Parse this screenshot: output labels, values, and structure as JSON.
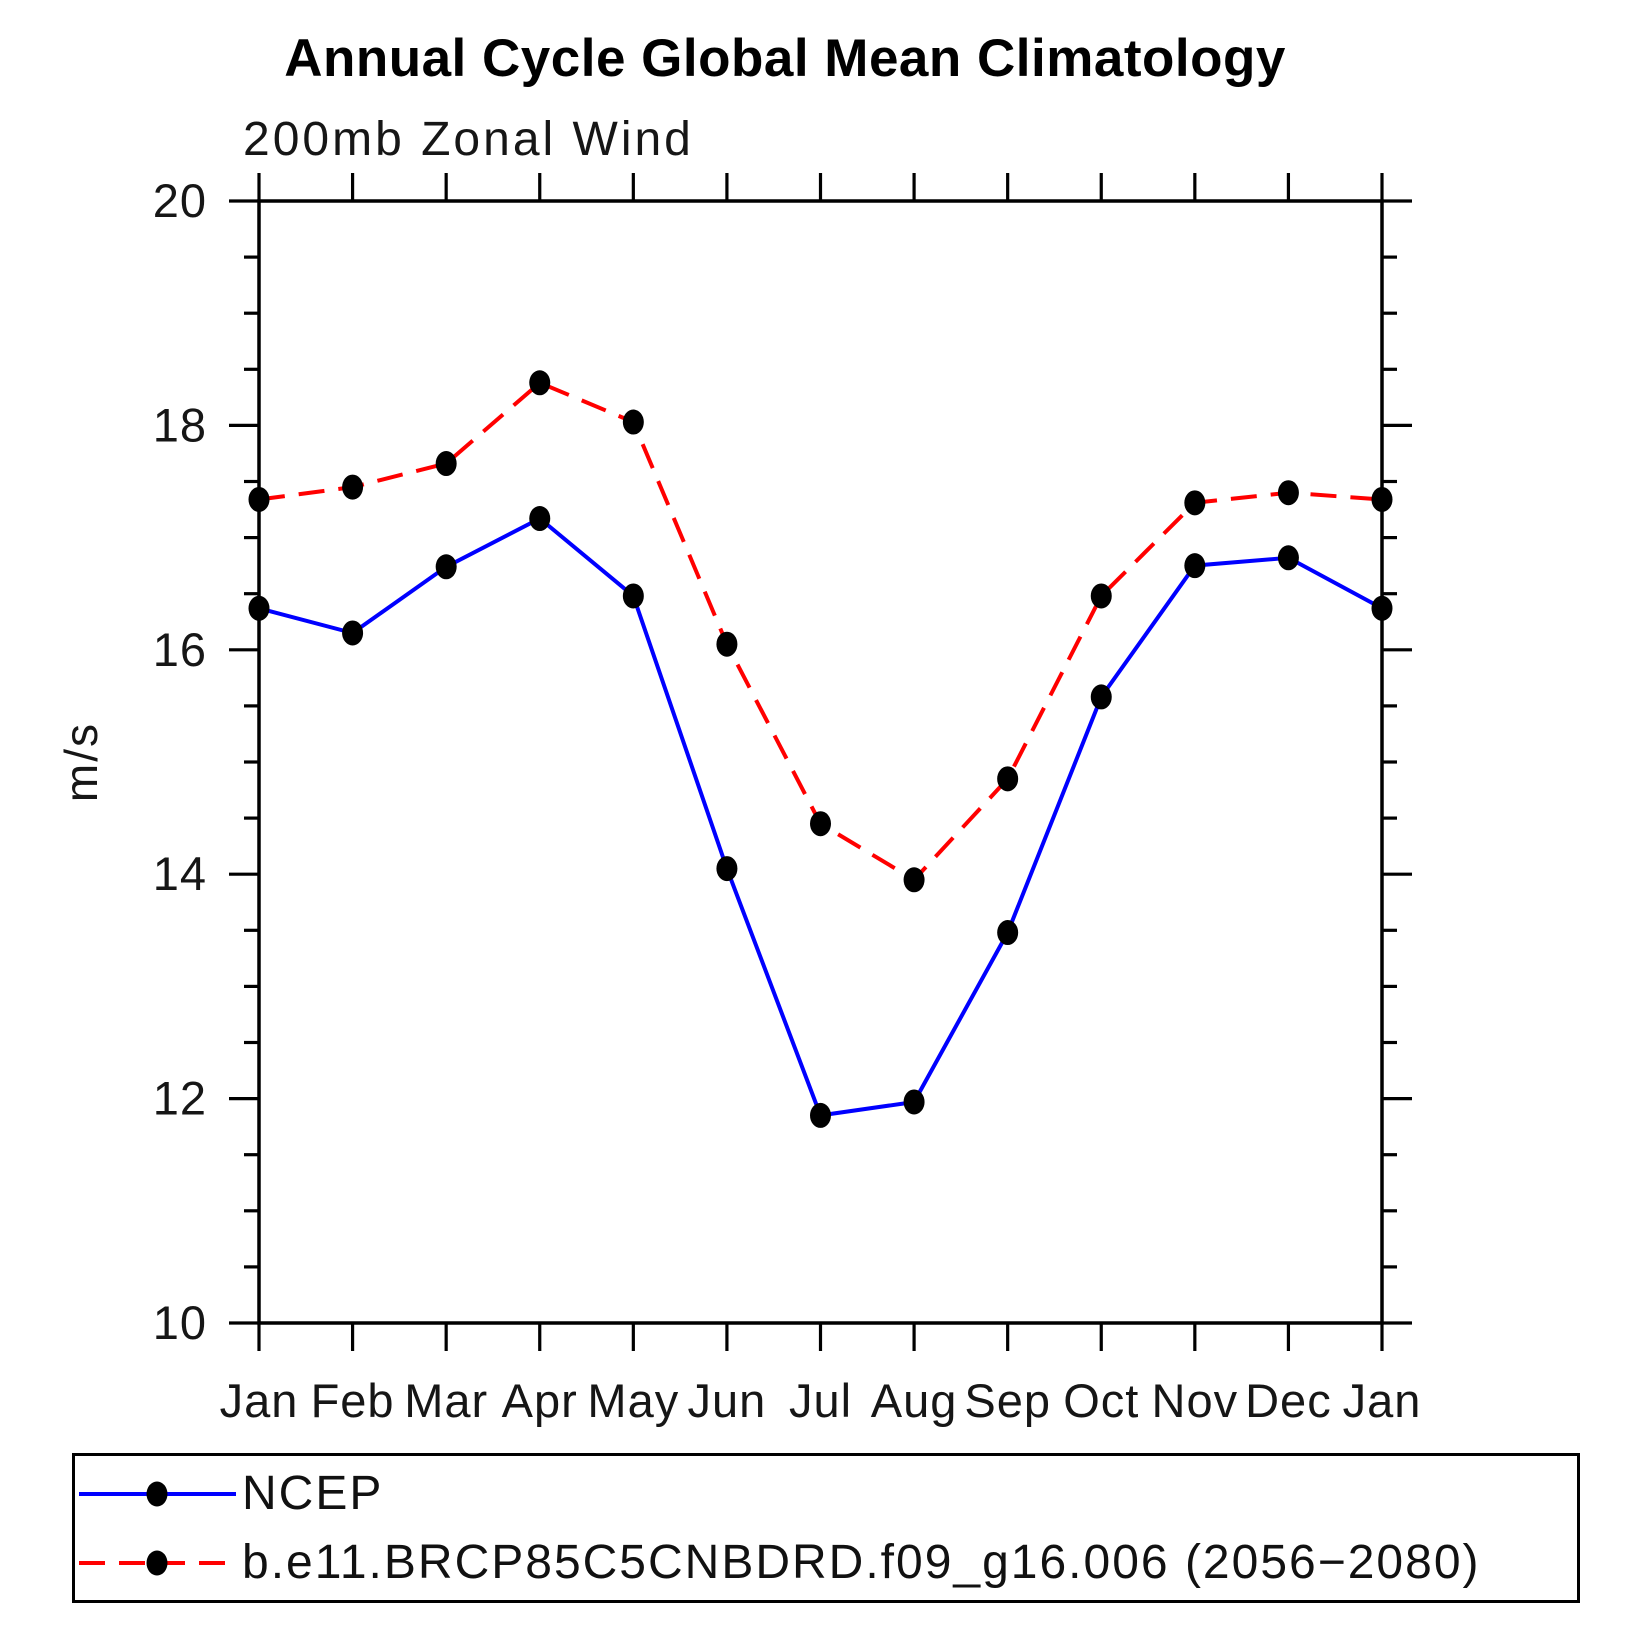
{
  "header": {
    "title": "Annual Cycle Global Mean Climatology",
    "subtitle": "200mb Zonal Wind"
  },
  "y_axis": {
    "label": "m/s",
    "tick_labels": [
      "10",
      "12",
      "14",
      "16",
      "18",
      "20"
    ]
  },
  "x_axis": {
    "tick_labels": [
      "Jan",
      "Feb",
      "Mar",
      "Apr",
      "May",
      "Jun",
      "Jul",
      "Aug",
      "Sep",
      "Oct",
      "Nov",
      "Dec",
      "Jan"
    ]
  },
  "legend": {
    "items": [
      {
        "label": "NCEP"
      },
      {
        "label": "b.e11.BRCP85C5CNBDRD.f09_g16.006 (2056−2080)"
      }
    ]
  },
  "colors": {
    "ncep_line": "#0000ff",
    "model_line": "#ff0000",
    "marker": "#000000",
    "axis": "#000000"
  },
  "chart_data": {
    "type": "line",
    "title": "Annual Cycle Global Mean Climatology",
    "subtitle": "200mb Zonal Wind",
    "ylabel": "m/s",
    "xlabel": "",
    "x_categories": [
      "Jan",
      "Feb",
      "Mar",
      "Apr",
      "May",
      "Jun",
      "Jul",
      "Aug",
      "Sep",
      "Oct",
      "Nov",
      "Dec",
      "Jan"
    ],
    "ylim": [
      10,
      20
    ],
    "ytick_major_step": 2,
    "ytick_minor_step": 0.5,
    "grid": false,
    "legend_position": "bottom",
    "series": [
      {
        "name": "NCEP",
        "color": "#0000ff",
        "style": "solid",
        "marker": "black-dot",
        "values": [
          16.37,
          16.15,
          16.74,
          17.17,
          16.48,
          14.05,
          11.85,
          11.97,
          13.48,
          15.58,
          16.75,
          16.82,
          16.37
        ]
      },
      {
        "name": "b.e11.BRCP85C5CNBDRD.f09_g16.006 (2056−2080)",
        "color": "#ff0000",
        "style": "dashed",
        "marker": "black-dot",
        "values": [
          17.34,
          17.45,
          17.66,
          18.38,
          18.03,
          16.05,
          14.45,
          13.95,
          14.85,
          16.48,
          17.31,
          17.4,
          17.34
        ]
      }
    ]
  }
}
